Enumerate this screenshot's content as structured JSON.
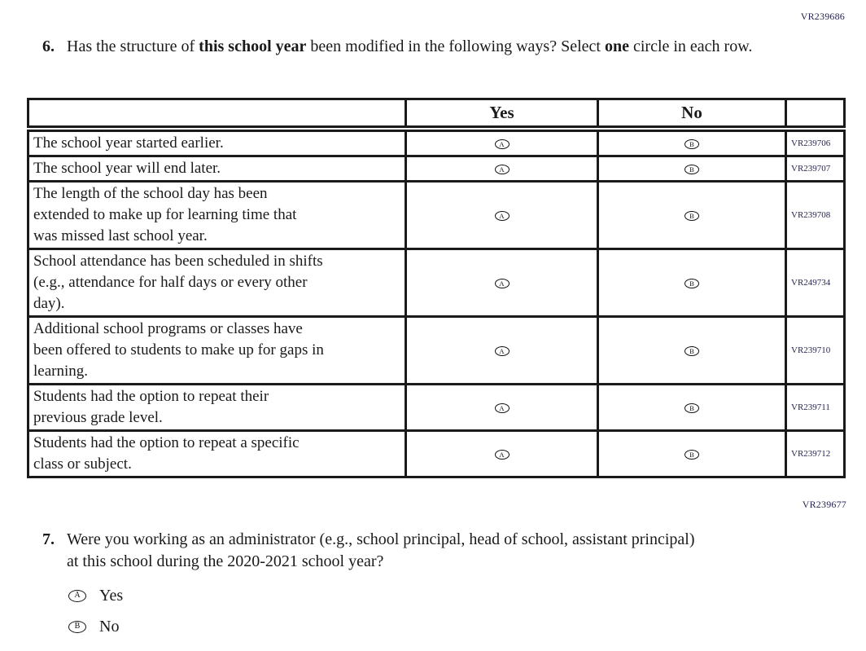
{
  "page": {
    "top_code": "VR239686",
    "mid_code": "VR239677"
  },
  "question6": {
    "number": "6.",
    "part1": "Has the structure of ",
    "bold1": "this school year",
    "part2": " been modified in the following ways? Select ",
    "bold2": "one",
    "part3": " circle in each row."
  },
  "table": {
    "header": {
      "stub": "",
      "yes": "Yes",
      "no": "No",
      "code": ""
    },
    "bubble_a": "A",
    "bubble_b": "B",
    "rows": [
      {
        "statement": "The school year started earlier.",
        "code": "VR239706"
      },
      {
        "statement": "The school year will end later.",
        "code": "VR239707"
      },
      {
        "statement": "The length of the school day has been\nextended to make up for learning time that\nwas missed last school year.",
        "code": "VR239708"
      },
      {
        "statement": "School attendance has been scheduled in shifts\n(e.g., attendance for half days or every other\nday).",
        "code": "VR249734"
      },
      {
        "statement": "Additional school programs or classes have\nbeen offered to students to make up for gaps in\nlearning.",
        "code": "VR239710"
      },
      {
        "statement": "Students had the option to repeat their\nprevious grade level.",
        "code": "VR239711"
      },
      {
        "statement": "Students had the option to repeat a specific\nclass or subject.",
        "code": "VR239712"
      }
    ]
  },
  "question7": {
    "number": "7.",
    "line1": "Were you working as an administrator (e.g., school principal, head of school, assistant principal)",
    "line2": "at this school during the 2020-2021 school year?",
    "options": [
      {
        "letter": "A",
        "label": "Yes"
      },
      {
        "letter": "B",
        "label": "No"
      }
    ]
  }
}
